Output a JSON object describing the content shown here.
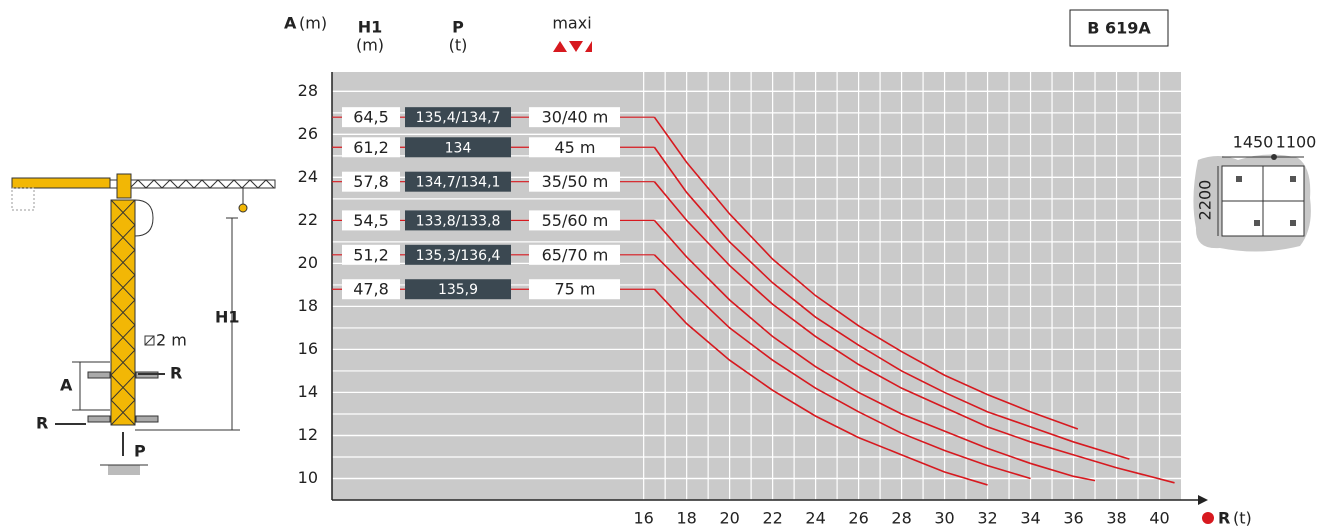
{
  "chart_data": {
    "type": "line",
    "title": "B 619A",
    "y_label": {
      "letter": "A",
      "unit": "(m)"
    },
    "x_label": {
      "letter": "R",
      "unit": "(t)"
    },
    "columns": {
      "h1": "H1",
      "h1_unit": "(m)",
      "p": "P",
      "p_unit": "(t)",
      "maxi": "maxi"
    },
    "rows": [
      {
        "h1": "64,5",
        "p": "135,4/134,7",
        "jib": "30/40 m"
      },
      {
        "h1": "61,2",
        "p": "134",
        "jib": "45 m"
      },
      {
        "h1": "57,8",
        "p": "134,7/134,1",
        "jib": "35/50 m"
      },
      {
        "h1": "54,5",
        "p": "133,8/133,8",
        "jib": "55/60 m"
      },
      {
        "h1": "51,2",
        "p": "135,3/136,4",
        "jib": "65/70 m"
      },
      {
        "h1": "47,8",
        "p": "135,9",
        "jib": "75 m"
      }
    ],
    "series": [
      {
        "color": "#d7191f",
        "x": [
          16.5,
          18,
          20,
          22,
          24,
          26,
          28,
          30,
          32,
          34,
          36.2
        ],
        "values": [
          26.8,
          24.7,
          22.3,
          20.2,
          18.5,
          17.1,
          15.9,
          14.8,
          13.9,
          13.1,
          12.3
        ]
      },
      {
        "color": "#d7191f",
        "x": [
          16.5,
          18,
          20,
          22,
          24,
          26,
          28,
          30,
          32,
          34,
          36,
          38.6
        ],
        "values": [
          25.4,
          23.3,
          21.0,
          19.1,
          17.5,
          16.2,
          15.0,
          14.0,
          13.1,
          12.4,
          11.7,
          10.9
        ]
      },
      {
        "color": "#d7191f",
        "x": [
          16.5,
          18,
          20,
          22,
          24,
          26,
          28,
          30,
          32,
          34,
          36,
          38,
          40.7
        ],
        "values": [
          23.8,
          22.0,
          19.9,
          18.1,
          16.6,
          15.3,
          14.2,
          13.3,
          12.4,
          11.7,
          11.1,
          10.5,
          9.8
        ]
      },
      {
        "color": "#d7191f",
        "x": [
          16.5,
          18,
          20,
          22,
          24,
          26,
          28,
          30,
          32,
          34,
          36,
          37
        ],
        "values": [
          22.0,
          20.3,
          18.3,
          16.6,
          15.2,
          14.0,
          13.0,
          12.2,
          11.4,
          10.7,
          10.1,
          9.9
        ]
      },
      {
        "color": "#d7191f",
        "x": [
          16.5,
          18,
          20,
          22,
          24,
          26,
          28,
          30,
          32,
          34
        ],
        "values": [
          20.4,
          18.9,
          17.0,
          15.5,
          14.2,
          13.1,
          12.1,
          11.3,
          10.6,
          10.0
        ]
      },
      {
        "color": "#d7191f",
        "x": [
          16.5,
          18,
          20,
          22,
          24,
          26,
          28,
          30,
          32
        ],
        "values": [
          18.8,
          17.2,
          15.5,
          14.1,
          12.9,
          11.9,
          11.1,
          10.3,
          9.7
        ]
      }
    ],
    "xlim": [
      1.5,
      41
    ],
    "ylim": [
      9,
      28.9
    ],
    "xticks": [
      16,
      18,
      20,
      22,
      24,
      26,
      28,
      30,
      32,
      34,
      36,
      38,
      40
    ],
    "yticks": [
      10,
      12,
      14,
      16,
      18,
      20,
      22,
      24,
      26,
      28
    ],
    "grid": true,
    "crane": {
      "h1": "H1",
      "a": "A",
      "r_top": "R",
      "r_bottom": "R",
      "p": "P",
      "section": "2 m"
    },
    "base": {
      "w1": "1450",
      "w2": "1100",
      "h": "2200"
    }
  }
}
